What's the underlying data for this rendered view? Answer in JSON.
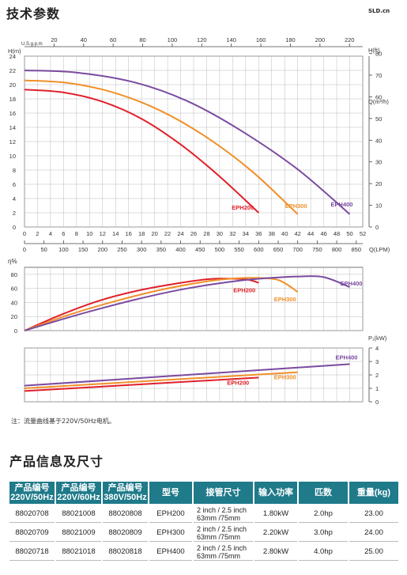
{
  "header": {
    "title": "技术参数",
    "brand": "SLD.cn"
  },
  "chart_data": [
    {
      "type": "line",
      "title": "",
      "y_label": "H(m)",
      "y2_label": "H(ft)",
      "top_x_label": "U.S.g.p.m",
      "x_label": "Q(m³/h)",
      "x2_label": "Q(LPM)",
      "xlim": [
        0,
        52
      ],
      "ylim": [
        0,
        24
      ],
      "x_ticks": [
        0,
        2,
        4,
        6,
        8,
        10,
        12,
        14,
        16,
        18,
        20,
        22,
        24,
        26,
        28,
        30,
        32,
        34,
        36,
        38,
        40,
        42,
        44,
        46,
        48,
        50,
        52
      ],
      "y_ticks": [
        0,
        2,
        4,
        6,
        8,
        10,
        12,
        14,
        16,
        18,
        20,
        22,
        24
      ],
      "gpm_ticks": [
        20,
        40,
        60,
        80,
        100,
        120,
        140,
        160,
        180,
        200,
        220
      ],
      "ft_ticks": [
        0,
        10,
        20,
        30,
        40,
        50,
        60,
        70,
        80
      ],
      "lpm_ticks": [
        0,
        50,
        100,
        150,
        200,
        250,
        300,
        350,
        400,
        450,
        500,
        550,
        600,
        650,
        700,
        750,
        800,
        850
      ],
      "series": [
        {
          "name": "EPH200",
          "color": "#e0202a",
          "x": [
            0,
            6,
            12,
            18,
            24,
            30,
            36
          ],
          "y": [
            19.3,
            18.9,
            17.6,
            15.2,
            11.6,
            7.1,
            2.0
          ]
        },
        {
          "name": "EPH300",
          "color": "#f0902a",
          "x": [
            0,
            7,
            14,
            21,
            28,
            35,
            42
          ],
          "y": [
            20.6,
            20.2,
            18.8,
            16.3,
            12.6,
            7.8,
            1.8
          ]
        },
        {
          "name": "EPH400",
          "color": "#7a4aa0",
          "x": [
            0,
            8,
            17,
            25,
            33,
            42,
            50
          ],
          "y": [
            22.0,
            21.7,
            20.3,
            17.7,
            13.7,
            8.1,
            1.8
          ]
        }
      ]
    },
    {
      "type": "line",
      "title": "",
      "y_label": "η%",
      "ylim": [
        0,
        90
      ],
      "y_ticks": [
        0,
        20,
        40,
        60,
        80
      ],
      "series": [
        {
          "name": "EPH200",
          "color": "#e0202a",
          "x": [
            0,
            6,
            12,
            18,
            24,
            28,
            30,
            34,
            36
          ],
          "y": [
            0,
            24,
            44,
            58,
            68,
            73,
            74,
            73,
            68
          ]
        },
        {
          "name": "EPH300",
          "color": "#f0902a",
          "x": [
            0,
            7,
            14,
            21,
            28,
            32,
            35,
            39,
            42
          ],
          "y": [
            0,
            23,
            42,
            58,
            70,
            74,
            75,
            72,
            55
          ]
        },
        {
          "name": "EPH400",
          "color": "#7a4aa0",
          "x": [
            0,
            8,
            17,
            25,
            33,
            38,
            42,
            46,
            50
          ],
          "y": [
            0,
            22,
            44,
            60,
            71,
            75,
            77,
            76,
            62
          ]
        }
      ]
    },
    {
      "type": "line",
      "title": "",
      "y_label": "P₁(kW)",
      "ylim": [
        0,
        4
      ],
      "y_ticks": [
        0,
        1,
        2,
        3,
        4
      ],
      "series": [
        {
          "name": "EPH200",
          "color": "#e0202a",
          "x": [
            0,
            36
          ],
          "y": [
            0.8,
            1.8
          ]
        },
        {
          "name": "EPH300",
          "color": "#f0902a",
          "x": [
            0,
            42
          ],
          "y": [
            1.0,
            2.2
          ]
        },
        {
          "name": "EPH400",
          "color": "#7a4aa0",
          "x": [
            0,
            50
          ],
          "y": [
            1.2,
            2.8
          ]
        }
      ]
    }
  ],
  "note": "注：流量曲线基于220V/50Hz电机。",
  "section2": {
    "title": "产品信息及尺寸"
  },
  "table": {
    "headers": [
      [
        "产品编号",
        "220V/50Hz"
      ],
      [
        "产品编号",
        "220V/60Hz"
      ],
      [
        "产品编号",
        "380V/50Hz"
      ],
      [
        "型号"
      ],
      [
        "接管尺寸"
      ],
      [
        "输入功率"
      ],
      [
        "匹数"
      ],
      [
        "重量(kg)"
      ]
    ],
    "rows": [
      {
        "c1": "88020708",
        "c2": "88021008",
        "c3": "88020808",
        "model": "EPH200",
        "pipe1": "2 inch / 2.5 inch",
        "pipe2": "63mm /75mm",
        "power": "1.80kW",
        "hp": "2.0hp",
        "weight": "23.00"
      },
      {
        "c1": "88020709",
        "c2": "88021009",
        "c3": "88020809",
        "model": "EPH300",
        "pipe1": "2 inch / 2.5 inch",
        "pipe2": "63mm /75mm",
        "power": "2.20kW",
        "hp": "3.0hp",
        "weight": "24.00"
      },
      {
        "c1": "88020718",
        "c2": "88021018",
        "c3": "88020818",
        "model": "EPH400",
        "pipe1": "2 inch / 2.5 inch",
        "pipe2": "63mm /75mm",
        "power": "2.80kW",
        "hp": "4.0hp",
        "weight": "25.00"
      }
    ]
  }
}
